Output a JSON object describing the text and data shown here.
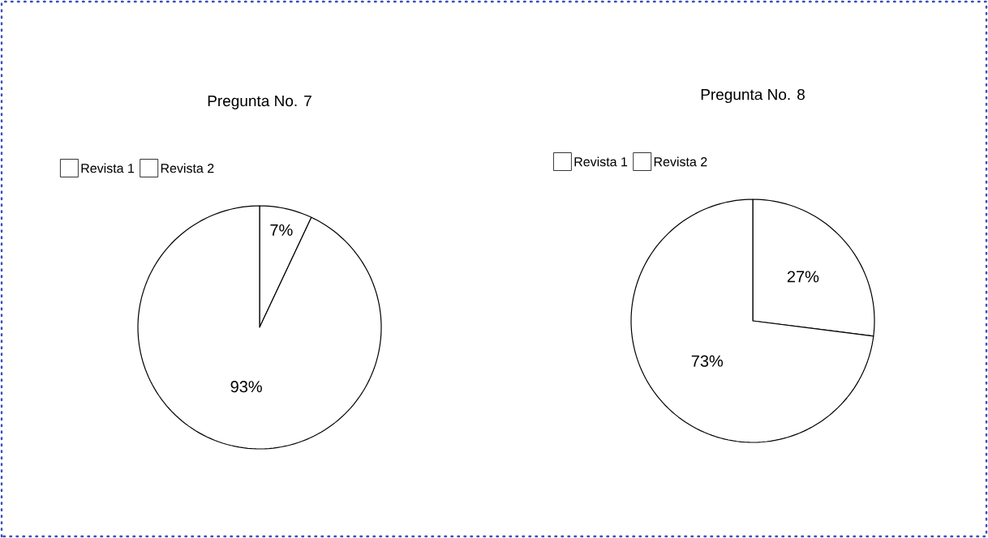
{
  "chart_data": [
    {
      "type": "pie",
      "title": "Pregunta No. 7",
      "categories": [
        "Revista 1",
        "Revista 2"
      ],
      "values": [
        7,
        93
      ],
      "colors": [
        "#ffffff",
        "#ffffff"
      ],
      "value_labels": [
        "7%",
        "93%"
      ],
      "legend": "top left"
    },
    {
      "type": "pie",
      "title": "Pregunta No. 8",
      "categories": [
        "Revista 1",
        "Revista 2"
      ],
      "values": [
        27,
        73
      ],
      "colors": [
        "#ffffff",
        "#ffffff"
      ],
      "value_labels": [
        "27%",
        "73%"
      ],
      "legend": "top left"
    }
  ]
}
